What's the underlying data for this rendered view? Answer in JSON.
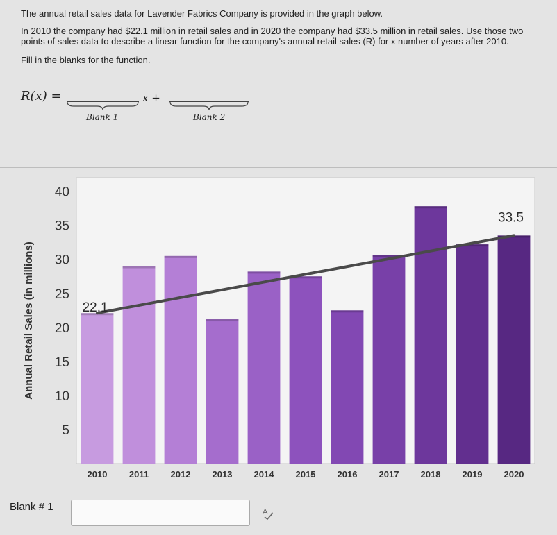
{
  "question": {
    "intro": "The annual retail sales data for Lavender Fabrics Company is provided in the graph below.",
    "description": "In 2010 the company had $22.1 million in retail sales and in 2020 the company had $33.5 million in retail sales.  Use those two points of sales data to describe a linear function for the company's annual retail sales (R) for x number of years after 2010.",
    "instruction": "Fill in the blanks for the function.",
    "function_label": "R(x) =",
    "function_middle": "x +",
    "blank1_caption": "Blank 1",
    "blank2_caption": "Blank 2"
  },
  "answer": {
    "label": "Blank # 1",
    "value": "",
    "spellcheck_icon": "spellcheck-icon"
  },
  "colors": {
    "page_bg": "#e4e4e4",
    "chart_bg": "#f4f4f4",
    "trend_line": "#4a4a4a"
  },
  "chart_data": {
    "type": "bar",
    "title": "",
    "xlabel": "",
    "ylabel": "Annual Retail Sales (in millions)",
    "ylim": [
      0,
      42
    ],
    "yticks": [
      5,
      10,
      15,
      20,
      25,
      30,
      35,
      40
    ],
    "categories": [
      "2010",
      "2011",
      "2012",
      "2013",
      "2014",
      "2015",
      "2016",
      "2017",
      "2018",
      "2019",
      "2020"
    ],
    "values": [
      22.1,
      29,
      30.5,
      21.2,
      28.2,
      27.5,
      22.5,
      30.6,
      37.8,
      32.2,
      33.5
    ],
    "bar_colors": [
      "#c79be0",
      "#c08fdc",
      "#b47fd6",
      "#a56dcd",
      "#9a61c6",
      "#8d52bd",
      "#8248b3",
      "#7840a8",
      "#6d379c",
      "#622f8f",
      "#572882"
    ],
    "trend_line": {
      "x0": "2010",
      "y0": 22.1,
      "x1": "2020",
      "y1": 33.5
    },
    "annotations": [
      {
        "category": "2010",
        "text": "22.1"
      },
      {
        "category": "2020",
        "text": "33.5"
      }
    ]
  }
}
